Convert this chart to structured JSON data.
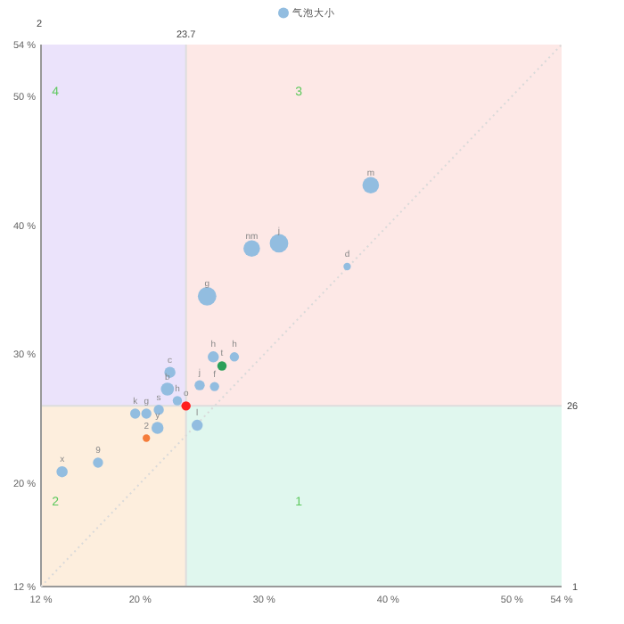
{
  "chart_data": {
    "type": "bubble",
    "xlabel": "1",
    "ylabel": "2",
    "xlim": [
      12,
      54
    ],
    "ylim": [
      12,
      54
    ],
    "xticks": [
      {
        "value": 12,
        "label": "12 %"
      },
      {
        "value": 20,
        "label": "20 %"
      },
      {
        "value": 30,
        "label": "30 %"
      },
      {
        "value": 40,
        "label": "40 %"
      },
      {
        "value": 50,
        "label": "50 %"
      },
      {
        "value": 54,
        "label": "54 %"
      }
    ],
    "yticks": [
      {
        "value": 12,
        "label": "12 %"
      },
      {
        "value": 20,
        "label": "20 %"
      },
      {
        "value": 30,
        "label": "30 %"
      },
      {
        "value": 40,
        "label": "40 %"
      },
      {
        "value": 50,
        "label": "50 %"
      },
      {
        "value": 54,
        "label": "54 %"
      }
    ],
    "legend": "top",
    "grid": false,
    "ref_lines": [
      {
        "axis": "x",
        "value": 23.7,
        "label": "23.7",
        "color": "#dddddd"
      },
      {
        "axis": "y",
        "value": 26,
        "label": "26",
        "color": "#dddddd"
      }
    ],
    "bands": [
      {
        "axis": "x",
        "from": 23.7,
        "to": 54,
        "label": "1",
        "color": "#e0f7ee"
      },
      {
        "axis": "x",
        "from": 12,
        "to": 23.7,
        "label": "2",
        "color": "#fdeedd"
      },
      {
        "axis": "x",
        "from": 23.7,
        "to": 54,
        "label": "3",
        "color": "#fde8e6"
      },
      {
        "axis": "x",
        "from": 12,
        "to": 23.7,
        "label": "4",
        "color": "#ebe3fb"
      }
    ],
    "series": [
      {
        "type": "line",
        "x": [
          12,
          54
        ],
        "values": [
          12,
          54
        ],
        "color": "#d9d9d9",
        "line_style": "dotted"
      },
      {
        "name": "气泡大小",
        "color": "#92bde0",
        "x": [
          38.6,
          29.0,
          31.2,
          25.4,
          36.7,
          25.9,
          26.6,
          27.6,
          24.8,
          26.0,
          22.4,
          22.2,
          23.0,
          23.7,
          19.6,
          20.5,
          21.5,
          21.4,
          20.5,
          24.6,
          13.7,
          16.6
        ],
        "values": [
          43.1,
          38.2,
          38.6,
          34.5,
          36.8,
          29.8,
          29.1,
          29.8,
          27.6,
          27.5,
          28.6,
          27.3,
          26.4,
          26.0,
          25.4,
          25.4,
          25.7,
          24.3,
          23.5,
          24.5,
          20.9,
          21.6
        ],
        "sizes": [
          0.8,
          0.8,
          1,
          1,
          0.16,
          0.36,
          0.25,
          0.25,
          0.3,
          0.25,
          0.36,
          0.5,
          0.25,
          0.25,
          0.3,
          0.3,
          0.3,
          0.42,
          0.16,
          0.36,
          0.36,
          0.3
        ],
        "colors": [
          "#92bde0",
          "#92bde0",
          "#92bde0",
          "#92bde0",
          "#92bde0",
          "#92bde0",
          "#2ca05a",
          "#92bde0",
          "#92bde0",
          "#92bde0",
          "#92bde0",
          "#92bde0",
          "#92bde0",
          "#ff1f1f",
          "#92bde0",
          "#92bde0",
          "#92bde0",
          "#92bde0",
          "#f57c3a",
          "#92bde0",
          "#92bde0",
          "#92bde0"
        ]
      }
    ],
    "annotations": [
      {
        "text": "m",
        "x": 38.6,
        "y": 43.1
      },
      {
        "text": "nm",
        "x": 29.0,
        "y": 38.2
      },
      {
        "text": "j",
        "x": 31.2,
        "y": 38.6
      },
      {
        "text": "g",
        "x": 25.4,
        "y": 34.5
      },
      {
        "text": "d",
        "x": 36.7,
        "y": 36.8
      },
      {
        "text": "h",
        "x": 25.9,
        "y": 29.8
      },
      {
        "text": "t",
        "x": 26.6,
        "y": 29.1
      },
      {
        "text": "h",
        "x": 27.6,
        "y": 29.8
      },
      {
        "text": "j",
        "x": 24.8,
        "y": 27.6
      },
      {
        "text": "f",
        "x": 26.0,
        "y": 27.5
      },
      {
        "text": "c",
        "x": 22.4,
        "y": 28.6
      },
      {
        "text": "b",
        "x": 22.2,
        "y": 27.3
      },
      {
        "text": "h",
        "x": 23.0,
        "y": 26.4
      },
      {
        "text": "o",
        "x": 23.7,
        "y": 26.0
      },
      {
        "text": "k",
        "x": 19.6,
        "y": 25.4
      },
      {
        "text": "g",
        "x": 20.5,
        "y": 25.4
      },
      {
        "text": "s",
        "x": 21.5,
        "y": 25.7
      },
      {
        "text": "y",
        "x": 21.4,
        "y": 24.3
      },
      {
        "text": "2",
        "x": 20.5,
        "y": 23.5
      },
      {
        "text": "l",
        "x": 24.6,
        "y": 24.5
      },
      {
        "text": "x",
        "x": 13.7,
        "y": 20.9
      },
      {
        "text": "9",
        "x": 16.6,
        "y": 21.6
      }
    ]
  }
}
